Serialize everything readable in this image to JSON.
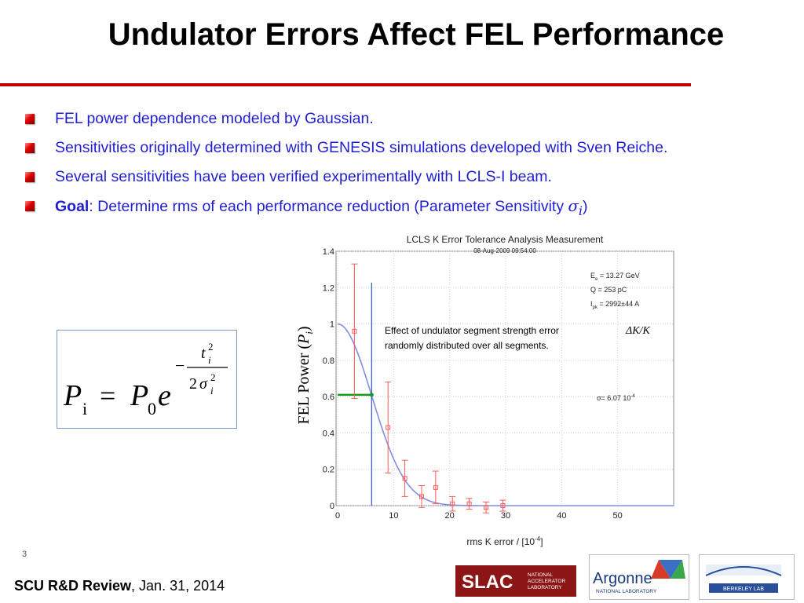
{
  "slide": {
    "title": "Undulator Errors Affect FEL Performance",
    "accent_color": "#c00000",
    "text_color": "#1f1fd0",
    "bullets": [
      {
        "text": "FEL power dependence modeled by Gaussian."
      },
      {
        "text": "Sensitivities originally determined with GENESIS simulations developed with Sven Reiche."
      },
      {
        "text": "Several sensitivities have been verified experimentally with LCLS-I beam."
      },
      {
        "bold": "Goal",
        "text": ": Determine rms of each performance reduction (Parameter Sensitivity ",
        "sigma": "σ",
        "sub": "i",
        "close": ")"
      }
    ],
    "formula": {
      "lhs": "P",
      "lhs_sub": "i",
      "eq": "=",
      "rhs": "P",
      "rhs_sub": "0",
      "exp_base": "e",
      "minus": "−",
      "num": "t",
      "num_sub": "i",
      "num_sup": "2",
      "den_coef": "2",
      "den": "σ",
      "den_sub": "i",
      "den_sup": "2"
    },
    "page_number": "3",
    "footer": {
      "bold": "SCU R&D Review",
      "text": ",  Jan. 31, 2014"
    },
    "logos": {
      "slac": {
        "word": "SLAC",
        "line1": "NATIONAL",
        "line2": "ACCELERATOR",
        "line3": "LABORATORY"
      },
      "argonne": {
        "word": "Argonne",
        "sub": "NATIONAL LABORATORY"
      },
      "berkeley": {
        "word": "BERKELEY LAB"
      }
    }
  },
  "chart_data": {
    "type": "scatter",
    "title": "LCLS K Error Tolerance Analysis Measurement",
    "subtitle": "08-Aug-2009 09:54:00",
    "xlabel": "rms K error / [10",
    "xlabel_sup": "-4",
    "xlabel_close": "]",
    "ylabel": "FEL Power (",
    "ylabel_var": "P",
    "ylabel_sub": "i",
    "ylabel_close": ")",
    "xlim": [
      0,
      60
    ],
    "ylim": [
      0,
      1.4
    ],
    "xticks": [
      "0",
      "10",
      "20",
      "30",
      "40",
      "50"
    ],
    "yticks": [
      "0",
      "0.2",
      "0.4",
      "0.6",
      "0.8",
      "1",
      "1.2",
      "1.4"
    ],
    "grid": true,
    "info": [
      {
        "main": "E",
        "sub": "e",
        "rest": " = 13.27 GeV"
      },
      {
        "main": "Q = 253 pC",
        "sub": "",
        "rest": ""
      },
      {
        "main": "I",
        "sub": "pk",
        "rest": " = 2992±44 A"
      }
    ],
    "sigma_label": {
      "text": "σ=  6.07 10",
      "sup": "-4"
    },
    "annotation": {
      "line1": "Effect of  undulator segment strength error",
      "line2": "randomly distributed over all segments.",
      "math": "ΔK/K"
    },
    "series": [
      {
        "points": [
          {
            "x": 3,
            "y": 0.96,
            "err": 0.37
          },
          {
            "x": 9,
            "y": 0.43,
            "err": 0.25
          },
          {
            "x": 12,
            "y": 0.15,
            "err": 0.1
          },
          {
            "x": 15,
            "y": 0.05,
            "err": 0.06
          },
          {
            "x": 17.5,
            "y": 0.1,
            "err": 0.09
          },
          {
            "x": 20.5,
            "y": 0.01,
            "err": 0.04
          },
          {
            "x": 23.5,
            "y": 0.01,
            "err": 0.03
          },
          {
            "x": 26.5,
            "y": -0.01,
            "err": 0.03
          },
          {
            "x": 29.5,
            "y": 0.0,
            "err": 0.03
          }
        ],
        "color": "#ff5a5a"
      }
    ],
    "fit": {
      "amplitude": 1.0,
      "sigma": 6.07,
      "color": "#7f8fe6"
    },
    "sigma_marker": {
      "x": 6.07,
      "y": 0.61,
      "color": "#1a9a1a",
      "vline_color": "#2a54b8"
    }
  }
}
